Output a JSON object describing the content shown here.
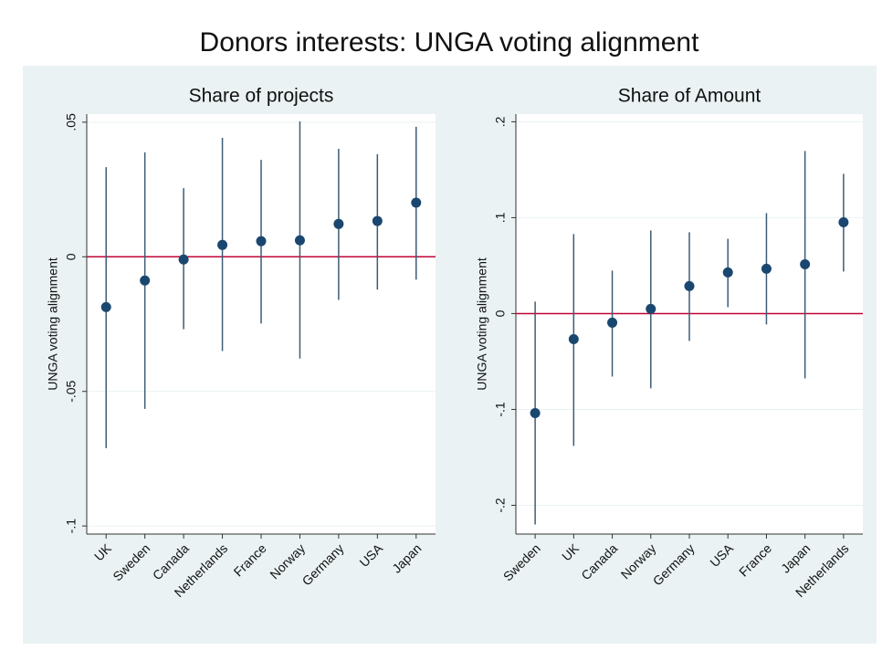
{
  "title": "Donors interests: UNGA voting alignment",
  "chart_data": [
    {
      "type": "errorbar",
      "title": "Share of projects",
      "ylabel": "UNGA voting alignment",
      "categories": [
        "UK",
        "Sweden",
        "Canada",
        "Netherlands",
        "France",
        "Norway",
        "Germany",
        "USA",
        "Japan"
      ],
      "values": [
        -0.0187,
        -0.0088,
        -0.001,
        0.0044,
        0.0058,
        0.0061,
        0.0122,
        0.0133,
        0.0201
      ],
      "lower": [
        -0.0711,
        -0.0565,
        -0.0269,
        -0.035,
        -0.0248,
        -0.0378,
        -0.016,
        -0.0122,
        -0.0085
      ],
      "upper": [
        0.0333,
        0.0388,
        0.0255,
        0.0442,
        0.036,
        0.0503,
        0.0401,
        0.0381,
        0.0483
      ],
      "color": "#1a476f",
      "line_color": "#3e5c75",
      "refline": 0,
      "refline_color": "#c10534",
      "ylim": [
        -0.103,
        0.053
      ],
      "yticks": [
        {
          "value": 0.05,
          "label": ".05"
        },
        0,
        {
          "value": -0.05,
          "label": "-.05"
        },
        {
          "value": -0.1,
          "label": "-.1"
        }
      ],
      "grid": true
    },
    {
      "type": "errorbar",
      "title": "Share of Amount",
      "ylabel": "UNGA voting alignment",
      "categories": [
        "Sweden",
        "UK",
        "Canada",
        "Norway",
        "Germany",
        "USA",
        "France",
        "Japan",
        "Netherlands"
      ],
      "values": [
        -0.1038,
        -0.0267,
        -0.0095,
        0.0048,
        0.0286,
        0.0429,
        0.0467,
        0.0514,
        0.0952
      ],
      "lower": [
        -0.22,
        -0.138,
        -0.0657,
        -0.078,
        -0.0286,
        0.0067,
        -0.0114,
        -0.0676,
        0.0438
      ],
      "upper": [
        0.0124,
        0.0829,
        0.0448,
        0.0867,
        0.0848,
        0.078,
        0.1048,
        0.1695,
        0.1457
      ],
      "color": "#1a476f",
      "line_color": "#3e5c75",
      "refline": 0,
      "refline_color": "#c10534",
      "ylim": [
        -0.23,
        0.208
      ],
      "yticks": [
        {
          "value": 0.2,
          "label": ".2"
        },
        {
          "value": 0.1,
          "label": ".1"
        },
        0,
        {
          "value": -0.1,
          "label": "-.1"
        },
        {
          "value": -0.2,
          "label": "-.2"
        }
      ],
      "grid": true
    }
  ]
}
